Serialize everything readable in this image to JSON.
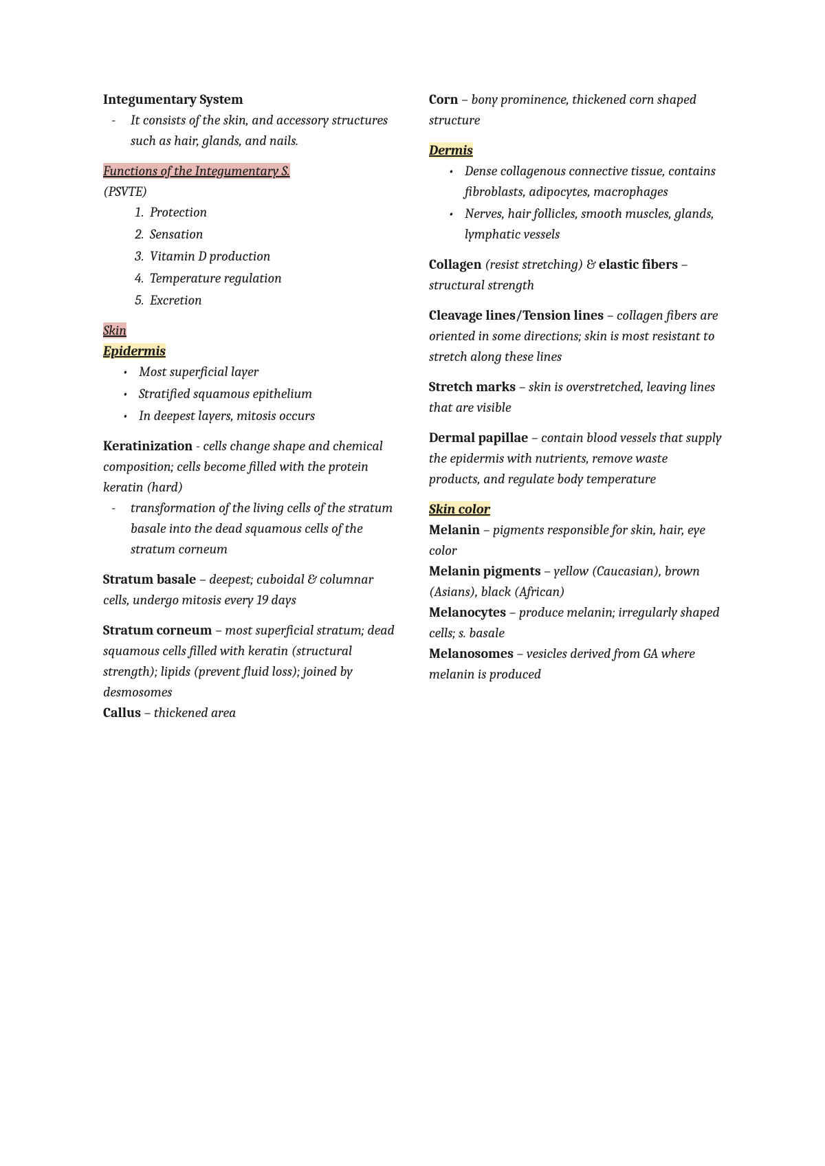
{
  "left": {
    "title": "Integumentary System",
    "intro": "It consists of the skin, and accessory structures such as hair, glands, and nails.",
    "functions_heading": "Functions of the Integumentary S.",
    "functions_sub": "(PSVTE)",
    "functions": [
      "Protection",
      "Sensation",
      "Vitamin D production",
      "Temperature regulation",
      "Excretion"
    ],
    "skin_heading": "Skin",
    "epidermis_heading": "Epidermis",
    "epidermis_bullets": [
      "Most superficial layer",
      "Stratified squamous epithelium",
      "In deepest layers, mitosis occurs"
    ],
    "keratinization_term": "Keratinization",
    "keratinization_def": " - cells change shape and chemical composition; cells become filled with the protein keratin (hard)",
    "keratinization_sub": "transformation of the living cells of the stratum basale into the dead squamous cells of the stratum corneum",
    "sb_term": "Stratum basale",
    "sb_def": " – deepest; cuboidal & columnar cells, undergo mitosis every 19 days",
    "sc_term": "Stratum corneum",
    "sc_def": " – most superficial stratum; dead squamous cells filled with keratin (structural strength); lipids (prevent fluid loss); joined by desmosomes",
    "callus_term": "Callus",
    "callus_def": " – thickened area"
  },
  "right": {
    "corn_term": "Corn",
    "corn_def": " – bony prominence, thickened corn shaped structure",
    "dermis_heading": "Dermis",
    "dermis_bullets": [
      "Dense collagenous connective tissue, contains fibroblasts, adipocytes, macrophages",
      "Nerves, hair follicles, smooth muscles, glands, lymphatic vessels"
    ],
    "collagen_term": "Collagen",
    "collagen_note": " (resist stretching) ",
    "amp": "& ",
    "elastic_term": "elastic fibers",
    "elastic_def": " – structural strength",
    "cleavage_term": "Cleavage lines/Tension lines",
    "cleavage_def": " – collagen fibers are oriented in some directions; skin is most resistant to stretch along these lines",
    "stretch_term": "Stretch marks",
    "stretch_def": " – skin is overstretched, leaving lines that are visible",
    "papillae_term": "Dermal papillae",
    "papillae_def": " – contain blood vessels that supply the epidermis with nutrients, remove waste products, and regulate body temperature",
    "skincolor_heading": "Skin color",
    "melanin_term": "Melanin",
    "melanin_def": " – pigments responsible for skin, hair, eye color",
    "mpig_term": "Melanin pigments",
    "mpig_def": " – yellow (Caucasian), brown (Asians), black (African)",
    "mcytes_term": "Melanocytes",
    "mcytes_def": " – produce melanin; irregularly shaped cells; s. basale",
    "msomes_term": "Melanosomes",
    "msomes_def": " – vesicles derived from GA where melanin is produced"
  }
}
